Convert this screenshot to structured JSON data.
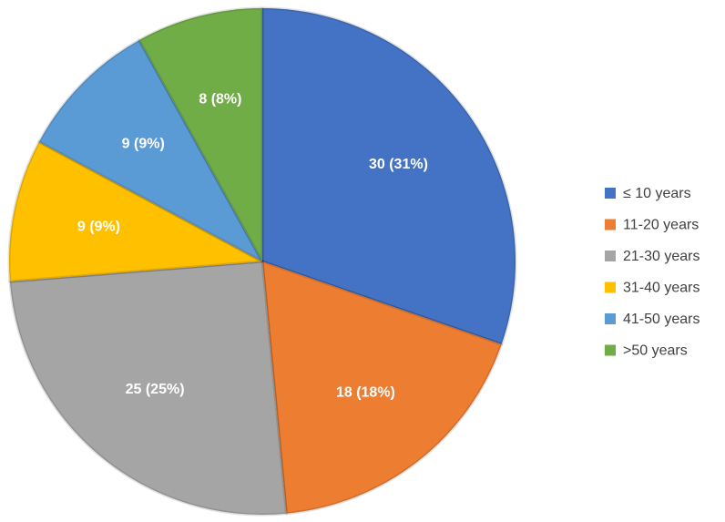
{
  "chart_data": {
    "type": "pie",
    "categories": [
      "≤ 10 years",
      "11-20 years",
      "21-30 years",
      "31-40 years",
      "41-50 years",
      ">50 years"
    ],
    "values": [
      30,
      18,
      25,
      9,
      9,
      8
    ],
    "value_labels": [
      "30 (31%)",
      "18 (18%)",
      "25 (25%)",
      "9 (9%)",
      "9 (9%)",
      "8 (8%)"
    ],
    "colors": [
      "#4472c4",
      "#ed7d31",
      "#a5a5a5",
      "#ffc000",
      "#5b9bd5",
      "#70ad47"
    ],
    "legend": "right"
  }
}
